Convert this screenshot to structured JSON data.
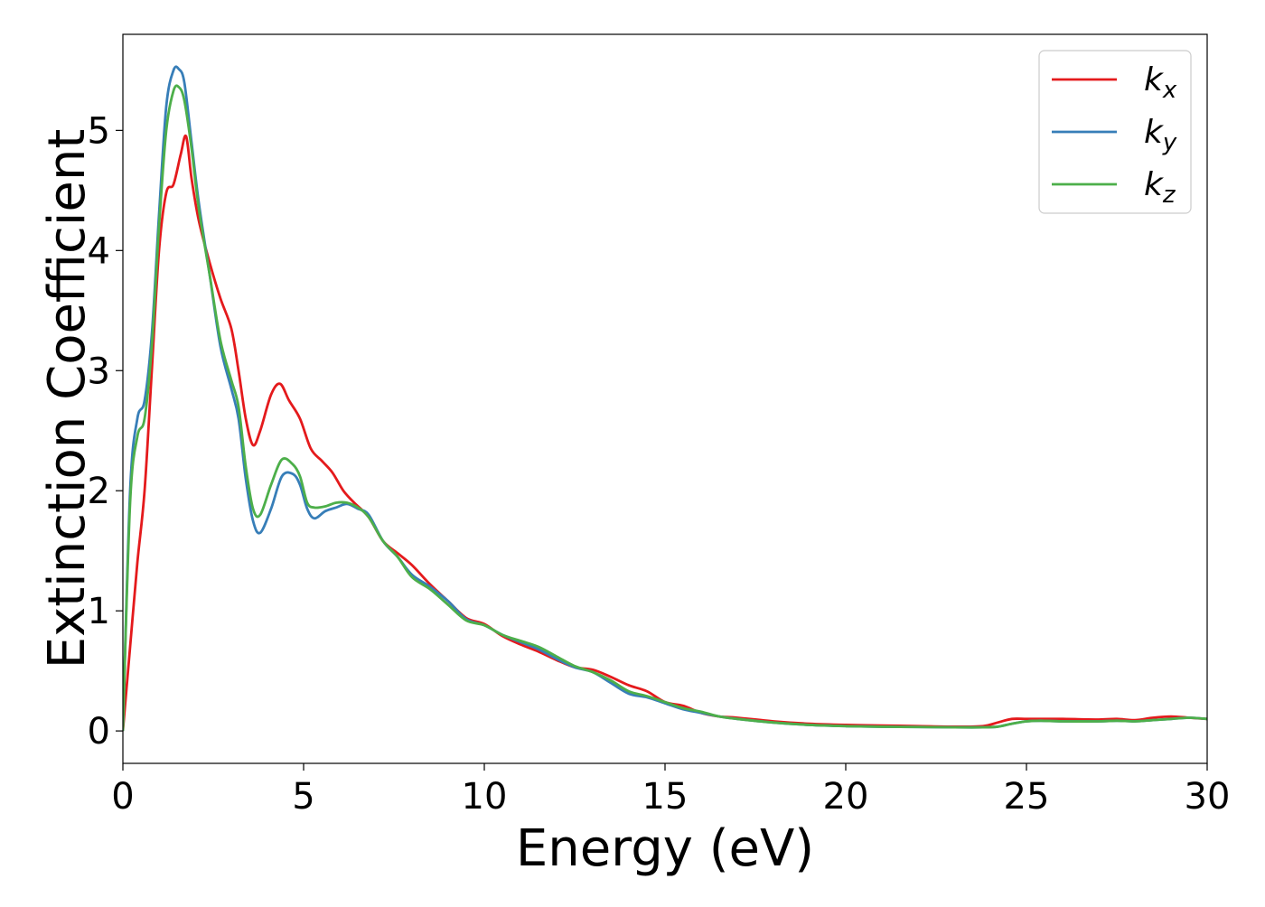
{
  "chart_data": {
    "type": "line",
    "title": "",
    "xlabel": "Energy (eV)",
    "ylabel": "Extinction Coefficient",
    "xlim": [
      0,
      30
    ],
    "ylim": [
      -0.27,
      5.8
    ],
    "xticks": [
      0,
      5,
      10,
      15,
      20,
      25,
      30
    ],
    "xtick_labels": [
      "0",
      "5",
      "10",
      "15",
      "20",
      "25",
      "30"
    ],
    "yticks": [
      0,
      1,
      2,
      3,
      4,
      5
    ],
    "ytick_labels": [
      "0",
      "1",
      "2",
      "3",
      "4",
      "5"
    ],
    "grid": false,
    "legend_position": "top-right",
    "series": [
      {
        "name": "k_x",
        "label_main": "k",
        "label_sub": "x",
        "color": "#e41a1c",
        "x": [
          0,
          0.2,
          0.4,
          0.6,
          0.8,
          1.0,
          1.2,
          1.4,
          1.6,
          1.75,
          1.9,
          2.1,
          2.4,
          2.7,
          3.0,
          3.2,
          3.4,
          3.6,
          3.8,
          4.1,
          4.35,
          4.6,
          4.9,
          5.2,
          5.5,
          5.8,
          6.1,
          6.4,
          6.8,
          7.2,
          7.6,
          8.0,
          8.5,
          9.0,
          9.5,
          10.0,
          10.5,
          11.0,
          11.5,
          12.0,
          12.5,
          13.0,
          13.5,
          14.0,
          14.5,
          15.0,
          15.5,
          16.0,
          16.5,
          17.0,
          18.0,
          19.0,
          20.0,
          21.0,
          22.0,
          23.0,
          23.8,
          24.2,
          24.6,
          25.0,
          25.4,
          26.0,
          27.0,
          27.5,
          28.0,
          28.5,
          29.0,
          29.5,
          30.0
        ],
        "y": [
          0.0,
          0.7,
          1.4,
          2.0,
          3.0,
          4.0,
          4.48,
          4.55,
          4.8,
          4.95,
          4.6,
          4.25,
          3.9,
          3.6,
          3.35,
          3.0,
          2.6,
          2.38,
          2.5,
          2.8,
          2.89,
          2.75,
          2.6,
          2.35,
          2.25,
          2.15,
          2.0,
          1.9,
          1.78,
          1.58,
          1.48,
          1.38,
          1.22,
          1.08,
          0.94,
          0.89,
          0.79,
          0.72,
          0.66,
          0.59,
          0.53,
          0.51,
          0.45,
          0.38,
          0.33,
          0.24,
          0.21,
          0.15,
          0.12,
          0.11,
          0.08,
          0.06,
          0.05,
          0.045,
          0.04,
          0.035,
          0.04,
          0.07,
          0.1,
          0.1,
          0.1,
          0.1,
          0.095,
          0.1,
          0.09,
          0.11,
          0.12,
          0.11,
          0.1
        ]
      },
      {
        "name": "k_y",
        "label_main": "k",
        "label_sub": "y",
        "color": "#377eb8",
        "x": [
          0,
          0.2,
          0.4,
          0.6,
          0.8,
          1.0,
          1.2,
          1.4,
          1.55,
          1.7,
          1.9,
          2.1,
          2.4,
          2.7,
          3.0,
          3.2,
          3.4,
          3.6,
          3.8,
          4.1,
          4.4,
          4.7,
          4.9,
          5.1,
          5.3,
          5.6,
          5.9,
          6.2,
          6.5,
          6.8,
          7.2,
          7.6,
          8.0,
          8.5,
          9.0,
          9.5,
          10.0,
          10.5,
          11.0,
          11.5,
          12.0,
          12.5,
          13.0,
          13.5,
          14.0,
          14.5,
          15.0,
          15.5,
          16.0,
          16.5,
          17.0,
          18.0,
          19.0,
          20.0,
          21.0,
          22.0,
          23.0,
          23.8,
          24.2,
          24.6,
          25.0,
          25.4,
          26.0,
          27.0,
          27.5,
          28.0,
          28.5,
          29.0,
          29.5,
          30.0
        ],
        "y": [
          0.0,
          2.0,
          2.6,
          2.75,
          3.3,
          4.3,
          5.2,
          5.5,
          5.51,
          5.4,
          4.9,
          4.4,
          3.8,
          3.2,
          2.85,
          2.6,
          2.1,
          1.75,
          1.65,
          1.85,
          2.12,
          2.14,
          2.05,
          1.85,
          1.77,
          1.83,
          1.86,
          1.89,
          1.85,
          1.8,
          1.58,
          1.45,
          1.3,
          1.2,
          1.08,
          0.93,
          0.88,
          0.8,
          0.74,
          0.68,
          0.6,
          0.53,
          0.49,
          0.4,
          0.31,
          0.28,
          0.23,
          0.18,
          0.15,
          0.12,
          0.1,
          0.07,
          0.05,
          0.04,
          0.035,
          0.033,
          0.03,
          0.03,
          0.035,
          0.06,
          0.08,
          0.085,
          0.08,
          0.08,
          0.085,
          0.08,
          0.09,
          0.1,
          0.11,
          0.1
        ]
      },
      {
        "name": "k_z",
        "label_main": "k",
        "label_sub": "z",
        "color": "#4daf4a",
        "x": [
          0,
          0.2,
          0.4,
          0.6,
          0.8,
          1.0,
          1.2,
          1.4,
          1.55,
          1.7,
          1.9,
          2.1,
          2.4,
          2.7,
          3.0,
          3.2,
          3.4,
          3.6,
          3.8,
          4.1,
          4.4,
          4.7,
          4.9,
          5.1,
          5.3,
          5.6,
          5.9,
          6.2,
          6.5,
          6.8,
          7.2,
          7.6,
          8.0,
          8.5,
          9.0,
          9.5,
          10.0,
          10.5,
          11.0,
          11.5,
          12.0,
          12.5,
          13.0,
          13.5,
          14.0,
          14.5,
          15.0,
          15.5,
          16.0,
          16.5,
          17.0,
          18.0,
          19.0,
          20.0,
          21.0,
          22.0,
          23.0,
          23.8,
          24.2,
          24.6,
          25.0,
          25.4,
          26.0,
          27.0,
          27.5,
          28.0,
          28.5,
          29.0,
          29.5,
          30.0
        ],
        "y": [
          0.0,
          1.9,
          2.45,
          2.6,
          3.2,
          4.2,
          5.0,
          5.33,
          5.36,
          5.25,
          4.85,
          4.35,
          3.8,
          3.25,
          2.92,
          2.7,
          2.2,
          1.85,
          1.8,
          2.05,
          2.26,
          2.22,
          2.12,
          1.9,
          1.86,
          1.87,
          1.9,
          1.9,
          1.86,
          1.78,
          1.58,
          1.45,
          1.28,
          1.18,
          1.05,
          0.92,
          0.88,
          0.8,
          0.75,
          0.7,
          0.62,
          0.54,
          0.49,
          0.42,
          0.33,
          0.29,
          0.24,
          0.19,
          0.16,
          0.12,
          0.1,
          0.07,
          0.05,
          0.04,
          0.035,
          0.033,
          0.03,
          0.03,
          0.035,
          0.06,
          0.08,
          0.085,
          0.08,
          0.08,
          0.085,
          0.08,
          0.09,
          0.1,
          0.11,
          0.1
        ]
      }
    ]
  }
}
